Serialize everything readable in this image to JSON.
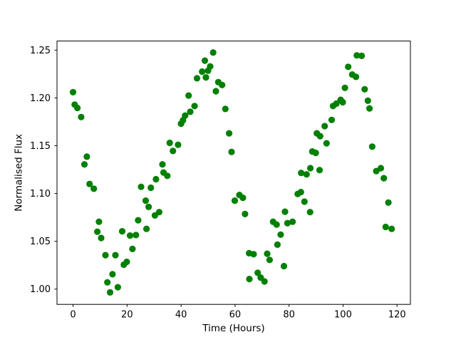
{
  "figure": {
    "background": "#ffffff",
    "frame_color": "#000000"
  },
  "chart_data": {
    "type": "scatter",
    "title": "",
    "xlabel": "Time (Hours)",
    "ylabel": "Normalised Flux",
    "marker_color": "#008000",
    "marker_radius_px": 4.6,
    "grid": false,
    "legend": "none",
    "xlim": [
      -5.95,
      124.95
    ],
    "ylim": [
      0.984,
      1.2595
    ],
    "x_ticks": [
      0,
      20,
      40,
      60,
      80,
      100,
      120
    ],
    "x_tick_labels": [
      "0",
      "20",
      "40",
      "60",
      "80",
      "100",
      "120"
    ],
    "y_ticks": [
      1.0,
      1.05,
      1.1,
      1.15,
      1.2,
      1.25
    ],
    "y_tick_labels": [
      "1.00",
      "1.05",
      "1.10",
      "1.15",
      "1.20",
      "1.25"
    ],
    "points": [
      [
        0.0,
        1.206
      ],
      [
        0.6,
        1.193
      ],
      [
        1.6,
        1.1895
      ],
      [
        3.0,
        1.18
      ],
      [
        4.2,
        1.1305
      ],
      [
        5.1,
        1.1385
      ],
      [
        6.1,
        1.11
      ],
      [
        7.7,
        1.105
      ],
      [
        9.0,
        1.06
      ],
      [
        9.6,
        1.0705
      ],
      [
        10.4,
        1.0535
      ],
      [
        12.0,
        1.0355
      ],
      [
        12.7,
        1.007
      ],
      [
        13.7,
        0.9965
      ],
      [
        14.6,
        1.0155
      ],
      [
        15.7,
        1.0355
      ],
      [
        16.6,
        1.002
      ],
      [
        18.2,
        1.0605
      ],
      [
        18.8,
        1.0255
      ],
      [
        19.9,
        1.0285
      ],
      [
        21.1,
        1.056
      ],
      [
        22.0,
        1.042
      ],
      [
        23.3,
        1.0565
      ],
      [
        24.1,
        1.072
      ],
      [
        25.2,
        1.107
      ],
      [
        26.9,
        1.0925
      ],
      [
        27.2,
        1.063
      ],
      [
        28.0,
        1.086
      ],
      [
        28.8,
        1.106
      ],
      [
        30.3,
        1.077
      ],
      [
        30.7,
        1.115
      ],
      [
        31.9,
        1.0805
      ],
      [
        33.1,
        1.1305
      ],
      [
        33.5,
        1.122
      ],
      [
        34.9,
        1.1185
      ],
      [
        35.8,
        1.153
      ],
      [
        37.0,
        1.1445
      ],
      [
        38.9,
        1.151
      ],
      [
        40.0,
        1.173
      ],
      [
        40.7,
        1.1765
      ],
      [
        41.5,
        1.1815
      ],
      [
        42.8,
        1.2025
      ],
      [
        43.4,
        1.1855
      ],
      [
        45.0,
        1.1915
      ],
      [
        45.9,
        1.2205
      ],
      [
        47.8,
        1.2275
      ],
      [
        48.8,
        1.239
      ],
      [
        49.2,
        1.2215
      ],
      [
        50.0,
        1.2285
      ],
      [
        50.8,
        1.233
      ],
      [
        51.9,
        1.2475
      ],
      [
        52.9,
        1.207
      ],
      [
        53.8,
        1.2165
      ],
      [
        55.2,
        1.2135
      ],
      [
        56.4,
        1.1885
      ],
      [
        57.8,
        1.163
      ],
      [
        58.7,
        1.1435
      ],
      [
        59.9,
        1.0925
      ],
      [
        61.6,
        1.0985
      ],
      [
        62.9,
        1.0955
      ],
      [
        63.7,
        1.0785
      ],
      [
        65.2,
        1.0375
      ],
      [
        65.3,
        1.0105
      ],
      [
        66.9,
        1.0365
      ],
      [
        68.4,
        1.017
      ],
      [
        69.5,
        1.012
      ],
      [
        70.9,
        1.008
      ],
      [
        71.9,
        1.037
      ],
      [
        72.8,
        1.0305
      ],
      [
        74.1,
        1.0705
      ],
      [
        75.4,
        1.0675
      ],
      [
        75.7,
        1.0465
      ],
      [
        76.9,
        1.057
      ],
      [
        78.1,
        1.024
      ],
      [
        78.5,
        1.081
      ],
      [
        79.4,
        1.069
      ],
      [
        81.3,
        1.0705
      ],
      [
        83.2,
        1.0995
      ],
      [
        84.4,
        1.1015
      ],
      [
        84.5,
        1.1215
      ],
      [
        85.7,
        1.0915
      ],
      [
        86.5,
        1.12
      ],
      [
        87.8,
        1.0805
      ],
      [
        87.9,
        1.1265
      ],
      [
        88.6,
        1.144
      ],
      [
        89.9,
        1.1425
      ],
      [
        90.3,
        1.163
      ],
      [
        91.3,
        1.1245
      ],
      [
        91.5,
        1.16
      ],
      [
        93.2,
        1.1705
      ],
      [
        93.9,
        1.1525
      ],
      [
        95.8,
        1.177
      ],
      [
        96.3,
        1.1915
      ],
      [
        97.5,
        1.194
      ],
      [
        99.1,
        1.198
      ],
      [
        99.9,
        1.1955
      ],
      [
        100.7,
        1.2105
      ],
      [
        101.9,
        1.2325
      ],
      [
        103.4,
        1.2245
      ],
      [
        104.8,
        1.222
      ],
      [
        105.1,
        1.2445
      ],
      [
        106.9,
        1.244
      ],
      [
        108.0,
        1.209
      ],
      [
        109.2,
        1.197
      ],
      [
        109.8,
        1.189
      ],
      [
        110.8,
        1.149
      ],
      [
        112.3,
        1.1235
      ],
      [
        114.0,
        1.1265
      ],
      [
        115.1,
        1.116
      ],
      [
        116.8,
        1.0905
      ],
      [
        115.8,
        1.065
      ],
      [
        118.0,
        1.063
      ]
    ]
  }
}
